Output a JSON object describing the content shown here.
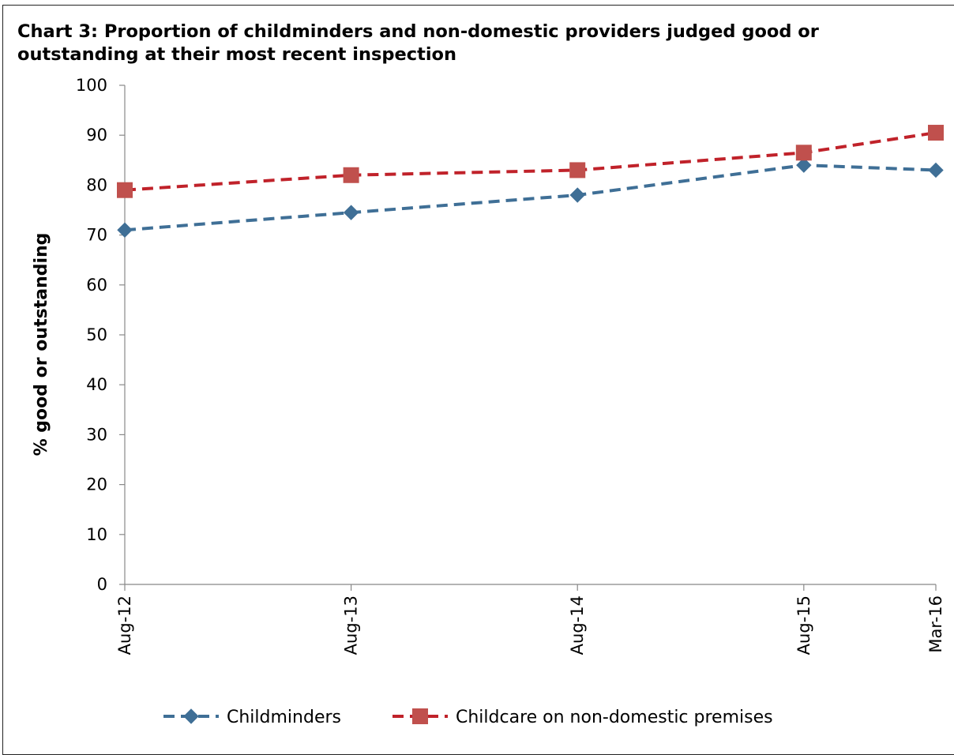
{
  "chart_data": {
    "type": "line",
    "title": "Chart 3: Proportion of childminders and non-domestic providers judged good or outstanding at their most recent inspection",
    "xlabel": "",
    "ylabel": "% good or outstanding",
    "categories": [
      "Aug-12",
      "Aug-13",
      "Aug-14",
      "Aug-15",
      "Mar-16"
    ],
    "x_months": [
      0,
      12,
      24,
      36,
      43
    ],
    "ylim": [
      0,
      100
    ],
    "yticks": [
      0,
      10,
      20,
      30,
      40,
      50,
      60,
      70,
      80,
      90,
      100
    ],
    "grid": false,
    "legend_position": "bottom",
    "series": [
      {
        "name": "Childminders",
        "values": [
          71,
          74.5,
          78,
          84,
          83
        ],
        "color": "#3f6f96",
        "marker": "diamond"
      },
      {
        "name": "Childcare on non-domestic premises",
        "values": [
          79,
          82,
          83,
          86.5,
          90.5
        ],
        "color": "#c0222a",
        "marker": "square",
        "marker_color": "#c0504d"
      }
    ]
  }
}
